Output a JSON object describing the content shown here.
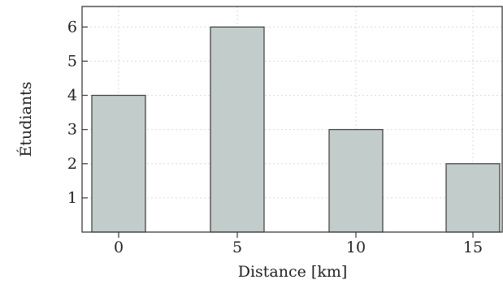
{
  "chart_data": {
    "type": "bar",
    "categories": [
      "0",
      "5",
      "10",
      "15"
    ],
    "values": [
      4,
      6,
      3,
      2
    ],
    "title": "",
    "xlabel": "Distance [km]",
    "ylabel": "Étudiants",
    "ylim": [
      0,
      6.6
    ],
    "yticks": [
      1,
      2,
      3,
      4,
      5,
      6
    ],
    "grid": true,
    "colors": {
      "bar_fill": "#c2cdcb",
      "bar_edge": "#3a3a3a"
    }
  }
}
